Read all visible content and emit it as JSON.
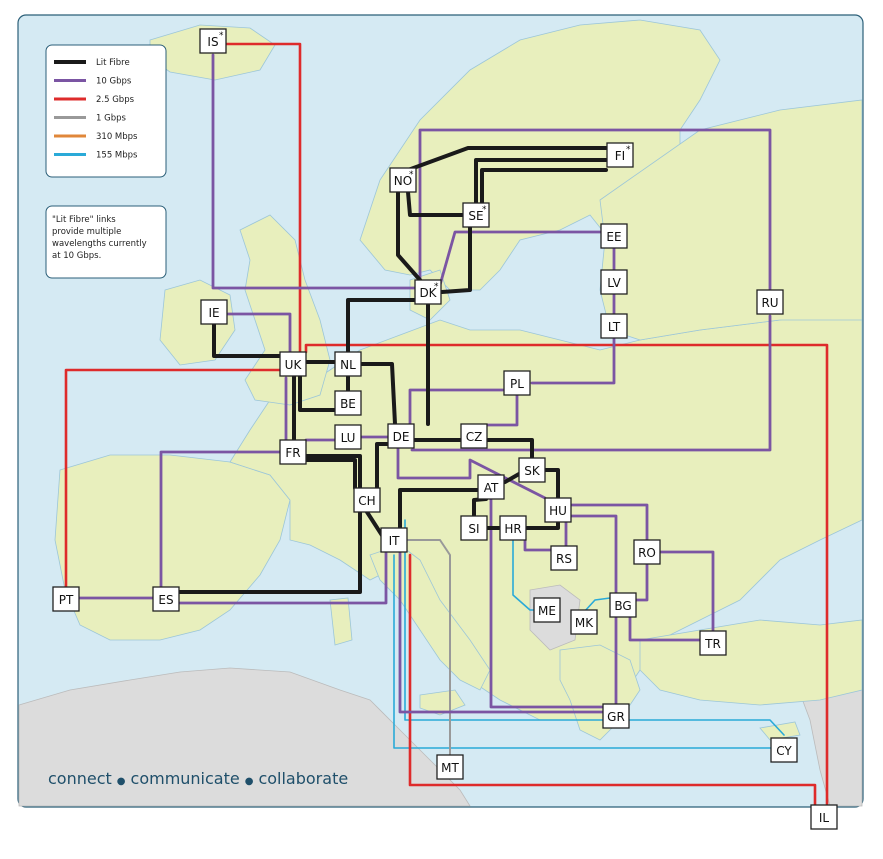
{
  "colors": {
    "sea": "#d5eaf3",
    "land_member": "#e8efbd",
    "land_other": "#dcdcdc",
    "border": "#9cc6d8",
    "lit_fibre": "#1a1a1a",
    "gbps10": "#7b55a3",
    "gbps2_5": "#de2b2b",
    "gbps1": "#999999",
    "mbps310": "#e0873a",
    "mbps155": "#2aaad8"
  },
  "legend": {
    "items": [
      {
        "key": "lit_fibre",
        "label": "Lit Fibre"
      },
      {
        "key": "gbps10",
        "label": "10 Gbps"
      },
      {
        "key": "gbps2_5",
        "label": "2.5 Gbps"
      },
      {
        "key": "gbps1",
        "label": "1 Gbps"
      },
      {
        "key": "mbps310",
        "label": "310 Mbps"
      },
      {
        "key": "mbps155",
        "label": "155 Mbps"
      }
    ]
  },
  "note": {
    "lines": [
      "\"Lit Fibre\" links",
      "provide multiple",
      "wavelengths currently",
      "at 10 Gbps."
    ]
  },
  "tagline": {
    "part1": "connect",
    "part2": "communicate",
    "part3": "collaborate",
    "bullet": "●"
  },
  "nodes": [
    {
      "id": "IS",
      "label": "IS",
      "star": true
    },
    {
      "id": "IE",
      "label": "IE",
      "star": false
    },
    {
      "id": "UK",
      "label": "UK",
      "star": false
    },
    {
      "id": "NO",
      "label": "NO",
      "star": true
    },
    {
      "id": "SE",
      "label": "SE",
      "star": true
    },
    {
      "id": "FI",
      "label": "FI",
      "star": true
    },
    {
      "id": "DK",
      "label": "DK",
      "star": true
    },
    {
      "id": "EE",
      "label": "EE",
      "star": false
    },
    {
      "id": "LV",
      "label": "LV",
      "star": false
    },
    {
      "id": "LT",
      "label": "LT",
      "star": false
    },
    {
      "id": "RU",
      "label": "RU",
      "star": false
    },
    {
      "id": "NL",
      "label": "NL",
      "star": false
    },
    {
      "id": "BE",
      "label": "BE",
      "star": false
    },
    {
      "id": "LU",
      "label": "LU",
      "star": false
    },
    {
      "id": "DE",
      "label": "DE",
      "star": false
    },
    {
      "id": "PL",
      "label": "PL",
      "star": false
    },
    {
      "id": "CZ",
      "label": "CZ",
      "star": false
    },
    {
      "id": "FR",
      "label": "FR",
      "star": false
    },
    {
      "id": "CH",
      "label": "CH",
      "star": false
    },
    {
      "id": "AT",
      "label": "AT",
      "star": false
    },
    {
      "id": "SK",
      "label": "SK",
      "star": false
    },
    {
      "id": "HU",
      "label": "HU",
      "star": false
    },
    {
      "id": "SI",
      "label": "SI",
      "star": false
    },
    {
      "id": "HR",
      "label": "HR",
      "star": false
    },
    {
      "id": "RS",
      "label": "RS",
      "star": false
    },
    {
      "id": "RO",
      "label": "RO",
      "star": false
    },
    {
      "id": "IT",
      "label": "IT",
      "star": false
    },
    {
      "id": "PT",
      "label": "PT",
      "star": false
    },
    {
      "id": "ES",
      "label": "ES",
      "star": false
    },
    {
      "id": "ME",
      "label": "ME",
      "star": false
    },
    {
      "id": "MK",
      "label": "MK",
      "star": false
    },
    {
      "id": "BG",
      "label": "BG",
      "star": false
    },
    {
      "id": "TR",
      "label": "TR",
      "star": false
    },
    {
      "id": "GR",
      "label": "GR",
      "star": false
    },
    {
      "id": "CY",
      "label": "CY",
      "star": false
    },
    {
      "id": "MT",
      "label": "MT",
      "star": false
    },
    {
      "id": "IL",
      "label": "IL",
      "star": false
    }
  ]
}
